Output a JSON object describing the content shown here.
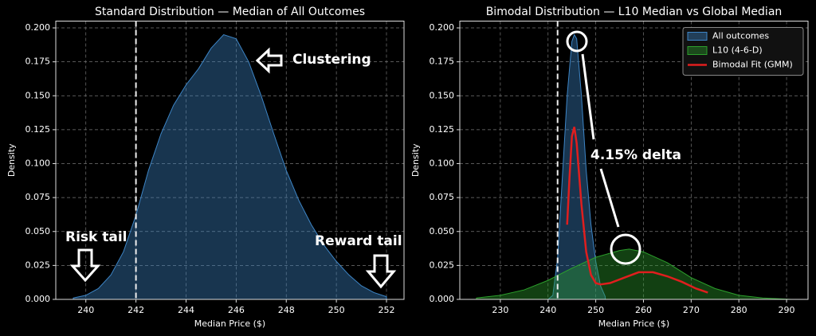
{
  "chart_data": [
    {
      "type": "area",
      "title": "Standard Distribution — Median of All Outcomes",
      "xlabel": "Median Price ($)",
      "ylabel": "Density",
      "xlim": [
        238.8,
        252.7
      ],
      "ylim": [
        0,
        0.205
      ],
      "xticks": [
        240,
        242,
        244,
        246,
        248,
        250,
        252
      ],
      "yticks": [
        {
          "value": 0,
          "label": "0.000"
        },
        {
          "value": 0.025,
          "label": "0.025"
        },
        {
          "value": 0.05,
          "label": "0.050"
        },
        {
          "value": 0.075,
          "label": "0.075"
        },
        {
          "value": 0.1,
          "label": "0.100"
        },
        {
          "value": 0.125,
          "label": "0.125"
        },
        {
          "value": 0.15,
          "label": "0.150"
        },
        {
          "value": 0.175,
          "label": "0.175"
        },
        {
          "value": 0.2,
          "label": "0.200"
        }
      ],
      "grid": true,
      "vline": 242,
      "series": [
        {
          "type": "area",
          "color": "#3d85c6",
          "x": [
            239.5,
            240,
            240.5,
            241,
            241.5,
            242,
            242.5,
            243,
            243.5,
            244,
            244.5,
            245,
            245.5,
            246,
            246.5,
            247,
            247.5,
            248,
            248.5,
            249,
            249.5,
            250,
            250.5,
            251,
            251.5,
            252
          ],
          "values": [
            0.001,
            0.003,
            0.008,
            0.018,
            0.035,
            0.062,
            0.095,
            0.122,
            0.143,
            0.158,
            0.17,
            0.185,
            0.195,
            0.192,
            0.175,
            0.15,
            0.122,
            0.095,
            0.073,
            0.055,
            0.04,
            0.028,
            0.018,
            0.01,
            0.005,
            0.002
          ]
        }
      ],
      "annotations": [
        "Clustering",
        "Risk tail",
        "Reward tail"
      ]
    },
    {
      "type": "area",
      "title": "Bimodal Distribution — L10 Median vs Global Median",
      "xlabel": "Median Price ($)",
      "ylabel": "Density",
      "xlim": [
        221.5,
        294.5
      ],
      "ylim": [
        0,
        0.205
      ],
      "xticks": [
        230,
        240,
        250,
        260,
        270,
        280,
        290
      ],
      "yticks": [
        {
          "value": 0,
          "label": "0.000"
        },
        {
          "value": 0.025,
          "label": "0.025"
        },
        {
          "value": 0.05,
          "label": "0.050"
        },
        {
          "value": 0.075,
          "label": "0.075"
        },
        {
          "value": 0.1,
          "label": "0.100"
        },
        {
          "value": 0.125,
          "label": "0.125"
        },
        {
          "value": 0.15,
          "label": "0.150"
        },
        {
          "value": 0.175,
          "label": "0.175"
        },
        {
          "value": 0.2,
          "label": "0.200"
        }
      ],
      "grid": true,
      "vline": 242,
      "legend": "upper right",
      "series": [
        {
          "name": "All outcomes",
          "type": "area",
          "color": "#3d85c6",
          "x": [
            240,
            241,
            242,
            243,
            244,
            245,
            245.5,
            246,
            247,
            248,
            249,
            250,
            251,
            252
          ],
          "values": [
            0.0,
            0.003,
            0.03,
            0.09,
            0.15,
            0.19,
            0.195,
            0.192,
            0.15,
            0.095,
            0.055,
            0.028,
            0.01,
            0.002
          ]
        },
        {
          "name": "L10 (4-6-D)",
          "type": "area",
          "color": "#2ca02c",
          "x": [
            225,
            230,
            235,
            240,
            245,
            250,
            255,
            257,
            260,
            265,
            270,
            275,
            280,
            285,
            291
          ],
          "values": [
            0.001,
            0.003,
            0.007,
            0.014,
            0.023,
            0.031,
            0.036,
            0.037,
            0.035,
            0.027,
            0.016,
            0.008,
            0.003,
            0.001,
            0.0
          ]
        },
        {
          "name": "Bimodal Fit (GMM)",
          "type": "line",
          "color": "#e01e1e",
          "x": [
            244,
            244.5,
            245,
            245.5,
            246,
            247,
            248,
            249,
            250,
            251,
            253,
            256,
            259,
            262,
            265,
            268,
            271,
            273.5
          ],
          "values": [
            0.055,
            0.09,
            0.12,
            0.127,
            0.115,
            0.07,
            0.035,
            0.018,
            0.012,
            0.011,
            0.012,
            0.016,
            0.02,
            0.02,
            0.017,
            0.013,
            0.008,
            0.005
          ]
        }
      ],
      "annotations": [
        "4.15% delta"
      ]
    }
  ]
}
